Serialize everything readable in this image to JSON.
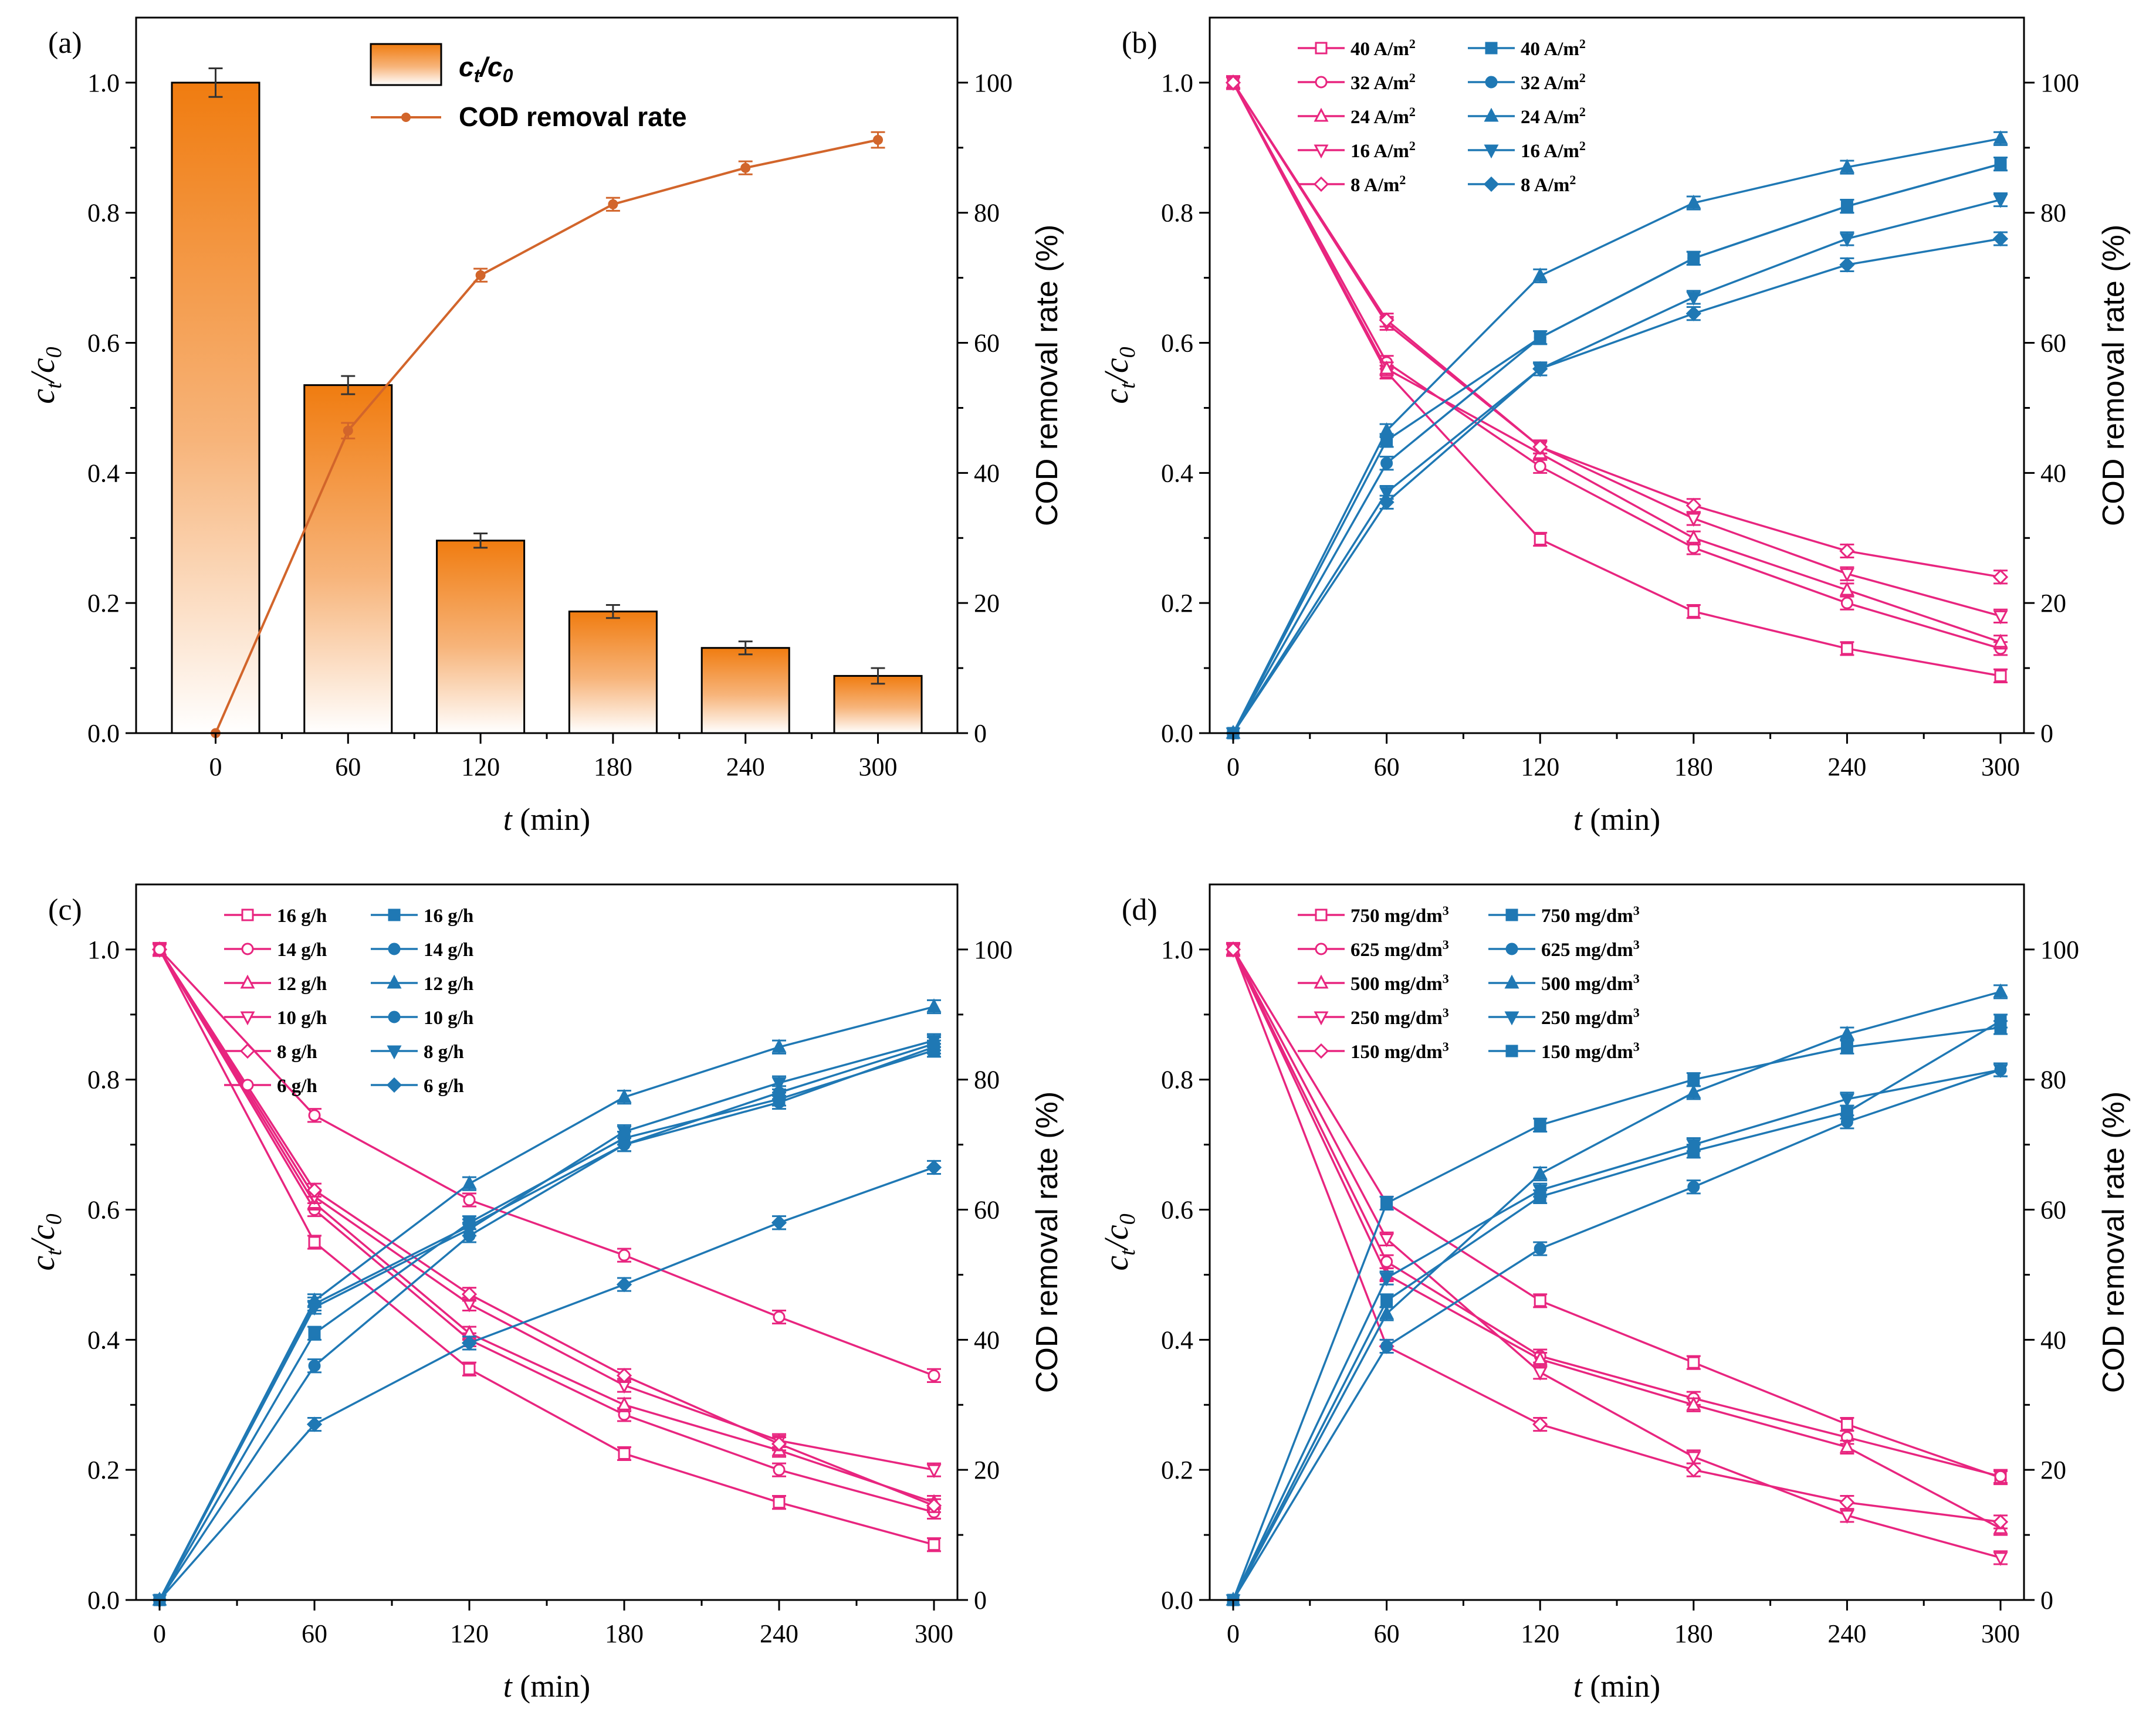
{
  "colors": {
    "pink": "#E8257F",
    "blue": "#1F78B4",
    "orange": "#F07C10",
    "orange_line": "#D2652B",
    "axis": "#000000"
  },
  "chart_data": [
    {
      "id": "a",
      "panel_label": "(a)",
      "type": "bar",
      "xlabel": "t (min)",
      "ylabel_left": "c_t/c_0",
      "ylabel_right": "COD removal rate (%)",
      "x_ticks": [
        "0",
        "60",
        "120",
        "180",
        "240",
        "300"
      ],
      "ylim_left": [
        0,
        1.1
      ],
      "ylim_right": [
        0,
        110
      ],
      "y_ticks_left": [
        "0.0",
        "0.2",
        "0.4",
        "0.6",
        "0.8",
        "1.0"
      ],
      "y_ticks_right": [
        "0",
        "20",
        "40",
        "60",
        "80",
        "100"
      ],
      "categories": [
        0,
        60,
        120,
        180,
        240,
        300
      ],
      "bars": {
        "name": "ct/c0",
        "values": [
          1.0,
          0.535,
          0.296,
          0.187,
          0.131,
          0.088
        ],
        "errors": [
          0.022,
          0.014,
          0.011,
          0.01,
          0.01,
          0.012
        ]
      },
      "line": {
        "name": "COD removal rate",
        "values": [
          0,
          46.5,
          70.4,
          81.3,
          86.9,
          91.2
        ],
        "errors": [
          0,
          1.2,
          1,
          1,
          1,
          1.2
        ]
      },
      "legend": {
        "bar_label_main": "c",
        "bar_label_sub1": "t",
        "bar_label_sep": "/c",
        "bar_label_sub2": "0",
        "line_label": "COD removal rate"
      }
    },
    {
      "id": "b",
      "panel_label": "(b)",
      "type": "line",
      "xlabel": "t (min)",
      "ylabel_left": "c_t/c_0",
      "ylabel_right": "COD removal rate (%)",
      "x": [
        0,
        60,
        120,
        180,
        240,
        300
      ],
      "x_ticks": [
        "0",
        "60",
        "120",
        "180",
        "240",
        "300"
      ],
      "ylim_left": [
        0,
        1.1
      ],
      "ylim_right": [
        0,
        110
      ],
      "y_ticks_left": [
        "0.0",
        "0.2",
        "0.4",
        "0.6",
        "0.8",
        "1.0"
      ],
      "y_ticks_right": [
        "0",
        "20",
        "40",
        "60",
        "80",
        "100"
      ],
      "series_left": [
        {
          "name": "40 A/m²",
          "values": [
            1.0,
            0.555,
            0.298,
            0.187,
            0.13,
            0.088
          ]
        },
        {
          "name": "32 A/m²",
          "values": [
            1.0,
            0.57,
            0.41,
            0.285,
            0.2,
            0.13
          ]
        },
        {
          "name": "24 A/m²",
          "values": [
            1.0,
            0.56,
            0.43,
            0.3,
            0.22,
            0.14
          ]
        },
        {
          "name": "16 A/m²",
          "values": [
            1.0,
            0.63,
            0.44,
            0.33,
            0.245,
            0.18
          ]
        },
        {
          "name": "8 A/m²",
          "values": [
            1.0,
            0.635,
            0.44,
            0.35,
            0.28,
            0.24
          ]
        }
      ],
      "series_right": [
        {
          "name": "40 A/m²",
          "marker": "square",
          "values": [
            0,
            45,
            60.8,
            73,
            81,
            87.5
          ]
        },
        {
          "name": "32 A/m²",
          "marker": "circle",
          "values": [
            0,
            41.5,
            60.8,
            73,
            81,
            87.5
          ]
        },
        {
          "name": "24 A/m²",
          "marker": "triangle",
          "values": [
            0,
            46.5,
            70.3,
            81.5,
            87,
            91.4
          ]
        },
        {
          "name": "16 A/m²",
          "marker": "tri-down",
          "values": [
            0,
            37,
            56,
            67,
            76,
            82
          ]
        },
        {
          "name": "8 A/m²",
          "marker": "diamond",
          "values": [
            0,
            35.5,
            56,
            64.5,
            72,
            76
          ]
        }
      ]
    },
    {
      "id": "c",
      "panel_label": "(c)",
      "type": "line",
      "xlabel": "t (min)",
      "ylabel_left": "c_t/c_0",
      "ylabel_right": "COD removal rate (%)",
      "x": [
        0,
        60,
        120,
        180,
        240,
        300
      ],
      "x_ticks": [
        "0",
        "60",
        "120",
        "180",
        "240",
        "300"
      ],
      "ylim_left": [
        0,
        1.1
      ],
      "ylim_right": [
        0,
        110
      ],
      "y_ticks_left": [
        "0.0",
        "0.2",
        "0.4",
        "0.6",
        "0.8",
        "1.0"
      ],
      "y_ticks_right": [
        "0",
        "20",
        "40",
        "60",
        "80",
        "100"
      ],
      "series_left": [
        {
          "name": "16 g/h",
          "values": [
            1.0,
            0.55,
            0.355,
            0.225,
            0.15,
            0.085
          ]
        },
        {
          "name": "14 g/h",
          "values": [
            1.0,
            0.6,
            0.4,
            0.285,
            0.2,
            0.135
          ]
        },
        {
          "name": "12 g/h",
          "values": [
            1.0,
            0.61,
            0.41,
            0.3,
            0.23,
            0.15
          ]
        },
        {
          "name": "10 g/h",
          "values": [
            1.0,
            0.62,
            0.455,
            0.33,
            0.245,
            0.2
          ]
        },
        {
          "name": "8 g/h",
          "values": [
            1.0,
            0.63,
            0.47,
            0.345,
            0.24,
            0.145
          ]
        },
        {
          "name": "6 g/h",
          "values": [
            1.0,
            0.745,
            0.615,
            0.53,
            0.435,
            0.345
          ]
        }
      ],
      "series_right": [
        {
          "name": "16 g/h",
          "marker": "square",
          "values": [
            0,
            41,
            58,
            71,
            77,
            84.5
          ]
        },
        {
          "name": "14 g/h",
          "marker": "circle",
          "values": [
            0,
            36,
            56,
            70,
            76.5,
            85
          ]
        },
        {
          "name": "12 g/h",
          "marker": "triangle",
          "values": [
            0,
            46,
            64,
            77.3,
            85,
            91.2
          ]
        },
        {
          "name": "10 g/h",
          "marker": "circle",
          "values": [
            0,
            45.5,
            57.5,
            70,
            78,
            85.5
          ]
        },
        {
          "name": "8 g/h",
          "marker": "tri-down",
          "values": [
            0,
            45,
            57,
            72,
            79.5,
            86
          ]
        },
        {
          "name": "6 g/h",
          "marker": "diamond",
          "values": [
            0,
            27,
            39.5,
            48.5,
            58,
            66.5
          ]
        }
      ]
    },
    {
      "id": "d",
      "panel_label": "(d)",
      "type": "line",
      "xlabel": "t (min)",
      "ylabel_left": "c_t/c_0",
      "ylabel_right": "COD removal rate (%)",
      "x": [
        0,
        60,
        120,
        180,
        240,
        300
      ],
      "x_ticks": [
        "0",
        "60",
        "120",
        "180",
        "240",
        "300"
      ],
      "ylim_left": [
        0,
        1.1
      ],
      "ylim_right": [
        0,
        110
      ],
      "y_ticks_left": [
        "0.0",
        "0.2",
        "0.4",
        "0.6",
        "0.8",
        "1.0"
      ],
      "y_ticks_right": [
        "0",
        "20",
        "40",
        "60",
        "80",
        "100"
      ],
      "series_left": [
        {
          "name": "750 mg/dm³",
          "values": [
            1.0,
            0.61,
            0.46,
            0.365,
            0.27,
            0.188
          ]
        },
        {
          "name": "625 mg/dm³",
          "values": [
            1.0,
            0.52,
            0.375,
            0.31,
            0.25,
            0.19
          ]
        },
        {
          "name": "500 mg/dm³",
          "values": [
            1.0,
            0.5,
            0.37,
            0.3,
            0.235,
            0.11
          ]
        },
        {
          "name": "250 mg/dm³",
          "values": [
            1.0,
            0.555,
            0.35,
            0.22,
            0.13,
            0.065
          ]
        },
        {
          "name": "150 mg/dm³",
          "values": [
            1.0,
            0.39,
            0.27,
            0.2,
            0.15,
            0.12
          ]
        }
      ],
      "series_right": [
        {
          "name": "750 mg/dm³",
          "marker": "square",
          "values": [
            0,
            61,
            73,
            80,
            85,
            88
          ]
        },
        {
          "name": "625 mg/dm³",
          "marker": "circle",
          "values": [
            0,
            39,
            54,
            63.5,
            73.5,
            81.5
          ]
        },
        {
          "name": "500 mg/dm³",
          "marker": "triangle",
          "values": [
            0,
            44,
            65.5,
            78,
            87,
            93.5
          ]
        },
        {
          "name": "250 mg/dm³",
          "marker": "tri-down",
          "values": [
            0,
            49.5,
            63,
            70,
            77,
            81.5
          ]
        },
        {
          "name": "150 mg/dm³",
          "marker": "square",
          "values": [
            0,
            46,
            62,
            69,
            75,
            89
          ]
        }
      ]
    }
  ]
}
